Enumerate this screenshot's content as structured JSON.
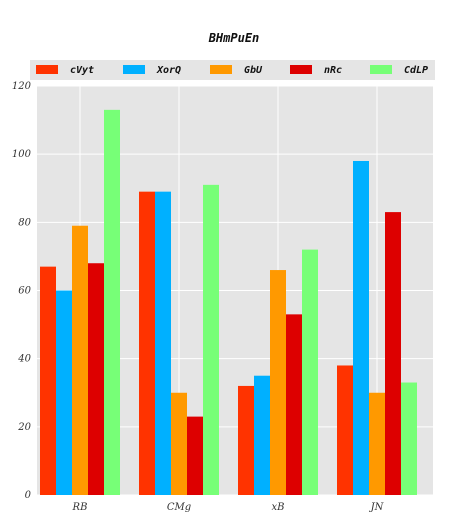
{
  "chart_data": {
    "type": "bar",
    "title": "BHmPuEn",
    "xlabel": "",
    "ylabel": "",
    "categories": [
      "RB",
      "CMg",
      "xB",
      "JN"
    ],
    "ylim": [
      0,
      120
    ],
    "yticks": [
      0,
      20,
      40,
      60,
      80,
      100,
      120
    ],
    "grid": true,
    "legend_position": "top",
    "series": [
      {
        "name": "cVyt",
        "color": "#ff3300",
        "values": [
          67,
          89,
          32,
          38
        ]
      },
      {
        "name": "XorQ",
        "color": "#00b0ff",
        "values": [
          60,
          89,
          35,
          98
        ]
      },
      {
        "name": "GbU",
        "color": "#ff9900",
        "values": [
          79,
          30,
          66,
          30
        ]
      },
      {
        "name": "nRc",
        "color": "#dd0000",
        "values": [
          68,
          23,
          53,
          83
        ]
      },
      {
        "name": "CdLP",
        "color": "#77ff77",
        "values": [
          113,
          91,
          72,
          33
        ]
      }
    ]
  }
}
